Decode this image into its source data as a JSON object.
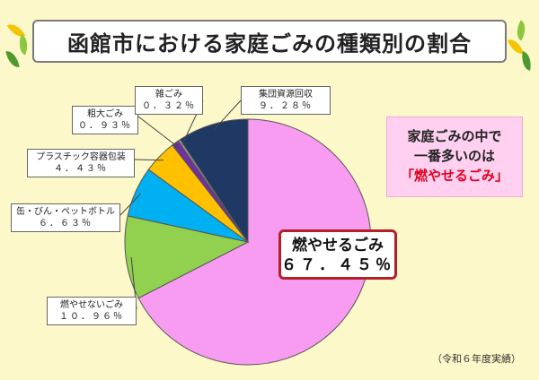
{
  "title": "函館市における家庭ごみの種類別の割合",
  "callout": {
    "line1": "家庭ごみの中で",
    "line2": "一番多いのは",
    "line3": "「燃やせるごみ」"
  },
  "footnote": "（令和６年度実績）",
  "colors": {
    "background": "#fdf8c9",
    "combustible": "#f79cf0",
    "noncombustible": "#92d050",
    "cans_bottles": "#00b0f0",
    "plastic": "#ffc000",
    "bulky": "#7030a0",
    "misc": "#999999",
    "collective": "#203864"
  },
  "chart_data": {
    "type": "pie",
    "title": "函館市における家庭ごみの種類別の割合",
    "slices": [
      {
        "label": "燃やせるごみ",
        "value": 67.45,
        "value_text": "６７．４５％",
        "color": "#f79cf0"
      },
      {
        "label": "燃やせないごみ",
        "value": 10.96,
        "value_text": "１０．９６％",
        "color": "#92d050"
      },
      {
        "label": "缶・びん・ペットボトル",
        "value": 6.63,
        "value_text": "６．６３％",
        "color": "#00b0f0"
      },
      {
        "label": "プラスチック容器包装",
        "value": 4.43,
        "value_text": "４．４３％",
        "color": "#ffc000"
      },
      {
        "label": "粗大ごみ",
        "value": 0.93,
        "value_text": "０．９３％",
        "color": "#7030a0"
      },
      {
        "label": "雑ごみ",
        "value": 0.32,
        "value_text": "０．３２％",
        "color": "#999999"
      },
      {
        "label": "集団資源回収",
        "value": 9.28,
        "value_text": "９．２８％",
        "color": "#203864"
      }
    ]
  }
}
